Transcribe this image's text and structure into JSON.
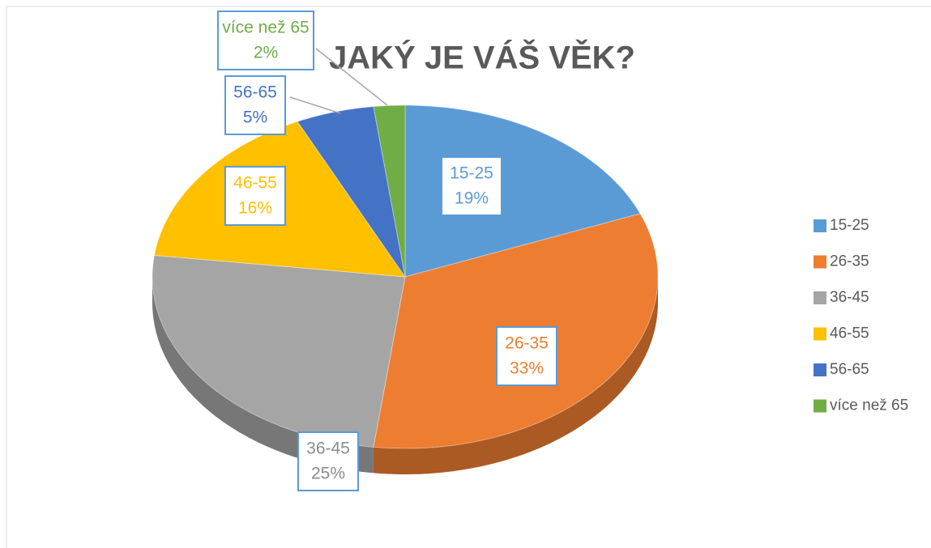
{
  "chart_data": {
    "type": "pie",
    "title": "JAKÝ JE VÁŠ VĚK?",
    "categories": [
      "15-25",
      "26-35",
      "36-45",
      "46-55",
      "56-65",
      "více než 65"
    ],
    "values": [
      19,
      33,
      25,
      16,
      5,
      2
    ],
    "value_labels": [
      "19%",
      "33%",
      "25%",
      "16%",
      "5%",
      "2%"
    ],
    "colors": [
      "#5b9bd5",
      "#ed7d31",
      "#a5a5a5",
      "#ffc000",
      "#4472c4",
      "#70ad47"
    ],
    "legend": "right"
  }
}
